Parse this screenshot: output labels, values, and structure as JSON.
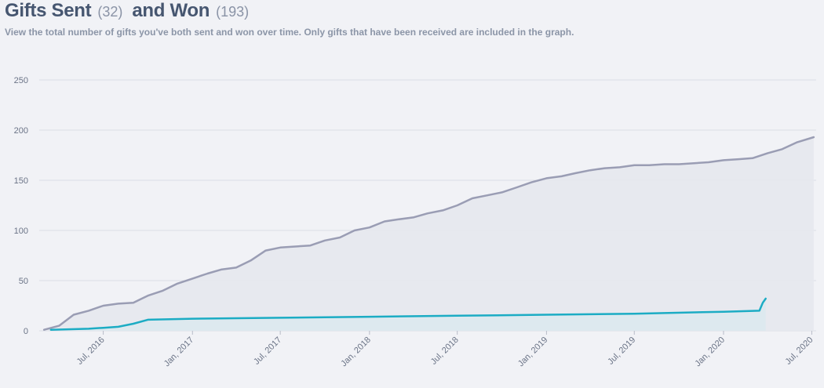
{
  "header": {
    "sent_label": "Gifts Sent",
    "sent_count": "(32)",
    "won_label": "and Won",
    "won_count": "(193)",
    "description": "View the total number of gifts you've both sent and won over time. Only gifts that have been received are included in the graph."
  },
  "colors": {
    "won": "#9a9db4",
    "sent": "#1cacc4",
    "won_fill": "#e6e8ee",
    "sent_fill": "#dbe9ee",
    "grid": "#dcdee5",
    "background": "#f1f2f6"
  },
  "chart_data": {
    "type": "line",
    "title": "Gifts Sent (32) and Won (193)",
    "xlabel": "",
    "ylabel": "",
    "x_type": "date",
    "xlim": [
      "2016-02-20",
      "2020-07-10"
    ],
    "ylim": [
      0,
      250
    ],
    "yticks": [
      0,
      50,
      100,
      150,
      200,
      250
    ],
    "xticks": [
      {
        "date": "2016-07-01",
        "label": "Jul, 2016"
      },
      {
        "date": "2017-01-01",
        "label": "Jan, 2017"
      },
      {
        "date": "2017-07-01",
        "label": "Jul, 2017"
      },
      {
        "date": "2018-01-01",
        "label": "Jan, 2018"
      },
      {
        "date": "2018-07-01",
        "label": "Jul, 2018"
      },
      {
        "date": "2019-01-01",
        "label": "Jan, 2019"
      },
      {
        "date": "2019-07-01",
        "label": "Jul, 2019"
      },
      {
        "date": "2020-01-01",
        "label": "Jan, 2020"
      },
      {
        "date": "2020-07-01",
        "label": "Jul, 2020"
      }
    ],
    "grid": true,
    "legend": "none",
    "series": [
      {
        "key": "won",
        "values": [
          [
            "2016-03-01",
            1
          ],
          [
            "2016-04-01",
            5
          ],
          [
            "2016-05-01",
            16
          ],
          [
            "2016-06-01",
            20
          ],
          [
            "2016-07-01",
            25
          ],
          [
            "2016-08-01",
            27
          ],
          [
            "2016-09-01",
            28
          ],
          [
            "2016-10-01",
            35
          ],
          [
            "2016-11-01",
            40
          ],
          [
            "2016-12-01",
            47
          ],
          [
            "2017-01-01",
            52
          ],
          [
            "2017-02-01",
            57
          ],
          [
            "2017-03-01",
            61
          ],
          [
            "2017-04-01",
            63
          ],
          [
            "2017-05-01",
            70
          ],
          [
            "2017-06-01",
            80
          ],
          [
            "2017-07-01",
            83
          ],
          [
            "2017-08-01",
            84
          ],
          [
            "2017-09-01",
            85
          ],
          [
            "2017-10-01",
            90
          ],
          [
            "2017-11-01",
            93
          ],
          [
            "2017-12-01",
            100
          ],
          [
            "2018-01-01",
            103
          ],
          [
            "2018-02-01",
            109
          ],
          [
            "2018-03-01",
            111
          ],
          [
            "2018-04-01",
            113
          ],
          [
            "2018-05-01",
            117
          ],
          [
            "2018-06-01",
            120
          ],
          [
            "2018-07-01",
            125
          ],
          [
            "2018-08-01",
            132
          ],
          [
            "2018-09-01",
            135
          ],
          [
            "2018-10-01",
            138
          ],
          [
            "2018-11-01",
            143
          ],
          [
            "2018-12-01",
            148
          ],
          [
            "2019-01-01",
            152
          ],
          [
            "2019-02-01",
            154
          ],
          [
            "2019-03-01",
            157
          ],
          [
            "2019-04-01",
            160
          ],
          [
            "2019-05-01",
            162
          ],
          [
            "2019-06-01",
            163
          ],
          [
            "2019-07-01",
            165
          ],
          [
            "2019-08-01",
            165
          ],
          [
            "2019-09-01",
            166
          ],
          [
            "2019-10-01",
            166
          ],
          [
            "2019-11-01",
            167
          ],
          [
            "2019-12-01",
            168
          ],
          [
            "2020-01-01",
            170
          ],
          [
            "2020-02-01",
            171
          ],
          [
            "2020-03-01",
            172
          ],
          [
            "2020-04-01",
            177
          ],
          [
            "2020-05-01",
            181
          ],
          [
            "2020-06-01",
            188
          ],
          [
            "2020-07-05",
            193
          ]
        ]
      },
      {
        "key": "sent",
        "values": [
          [
            "2016-03-15",
            1
          ],
          [
            "2016-06-01",
            2
          ],
          [
            "2016-07-01",
            3
          ],
          [
            "2016-08-01",
            4
          ],
          [
            "2016-09-01",
            7
          ],
          [
            "2016-10-01",
            11
          ],
          [
            "2017-01-01",
            12
          ],
          [
            "2017-07-01",
            13
          ],
          [
            "2018-01-01",
            14
          ],
          [
            "2018-07-01",
            15
          ],
          [
            "2019-01-01",
            16
          ],
          [
            "2019-07-01",
            17
          ],
          [
            "2020-01-01",
            19
          ],
          [
            "2020-03-15",
            20
          ],
          [
            "2020-03-22",
            28
          ],
          [
            "2020-03-28",
            32
          ]
        ]
      }
    ]
  }
}
